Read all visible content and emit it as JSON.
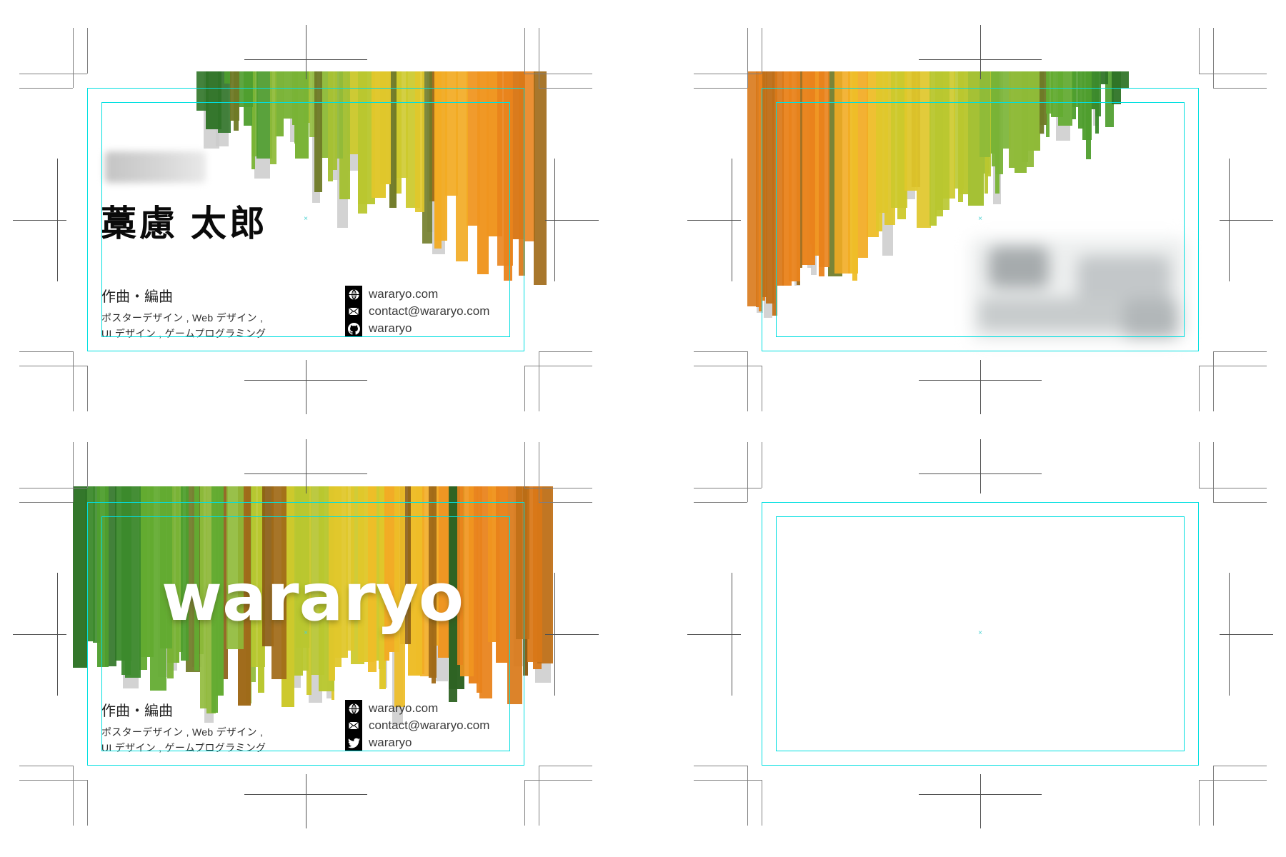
{
  "sheet": {
    "background": "#ffffff",
    "guide_color": "#00dfe0",
    "corner_mark_color": "#7f7f7f",
    "cross_mark_color": "#515151",
    "center_mark_glyph": "×",
    "center_mark_color": "#4ad2d2"
  },
  "palette": {
    "stripes_green_to_orange": [
      "#2f7427",
      "#3c8a2c",
      "#4f9e2e",
      "#63ab31",
      "#79b336",
      "#8fba38",
      "#a5c134",
      "#b9c72f",
      "#cdc92c",
      "#e0c72b",
      "#eebd28",
      "#f2ab23",
      "#f0951f",
      "#e9831c",
      "#d97818",
      "#c06f17"
    ],
    "stripe_accents": [
      "#6f7a26",
      "#a06a18",
      "#2e6323",
      "#8a5c14"
    ],
    "stripe_shadow": "#cbcbcb"
  },
  "card_front": {
    "name": "藁慮 太郎",
    "title": "作曲・編曲",
    "skills_line1": "ポスターデザイン , Web デザイン ,",
    "skills_line2": "UI デザイン , ゲームプログラミング",
    "website": "wararyo.com",
    "email": "contact@wararyo.com",
    "github_username": "wararyo"
  },
  "card_logo": {
    "logo_text": "wararyo",
    "title": "作曲・編曲",
    "skills_line1": "ポスターデザイン , Web デザイン ,",
    "skills_line2": "UI デザイン , ゲームプログラミング",
    "website": "wararyo.com",
    "email": "contact@wararyo.com",
    "twitter_username": "wararyo"
  }
}
